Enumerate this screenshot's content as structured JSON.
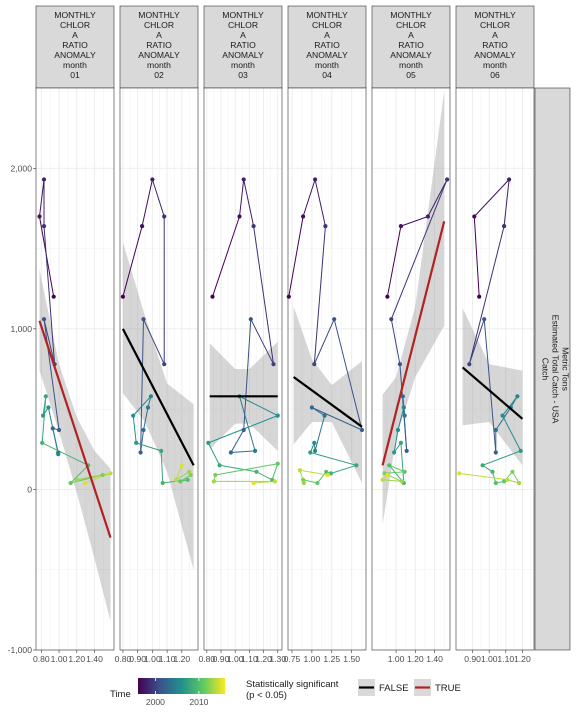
{
  "chart_data": {
    "type": "line",
    "facet_label_lines": [
      "MONTHLY",
      "CHLOR",
      "A",
      "RATIO",
      "ANOMALY",
      "month"
    ],
    "facet_months": [
      "01",
      "02",
      "03",
      "04",
      "05",
      "06"
    ],
    "y_strip_lines": [
      "Catch",
      "Estimated Total Catch - USA",
      "Metric Tons"
    ],
    "ylim": [
      -1000,
      2500
    ],
    "y_ticks": [
      -1000,
      0,
      1000,
      2000
    ],
    "y_tick_labels": [
      "-1,000",
      "0",
      "1,000",
      "2,000"
    ],
    "grid": true,
    "legend": {
      "position": "bottom",
      "color_title": "Time",
      "color_ticks": [
        "2000",
        "2010"
      ],
      "color_range": [
        1996,
        2016
      ],
      "color_stops": [
        "#440154",
        "#3b528b",
        "#21918c",
        "#5ec962",
        "#fde725"
      ],
      "sig_title_lines": [
        "Statistically significant",
        "(p < 0.05)"
      ],
      "sig_entries": [
        {
          "label": "FALSE",
          "color": "#000000"
        },
        {
          "label": "TRUE",
          "color": "#b22222"
        }
      ]
    },
    "facets": [
      {
        "month": "01",
        "xlim": [
          0.74,
          1.62
        ],
        "x_ticks": [
          0.8,
          1.0,
          1.2,
          1.4
        ],
        "x_tick_labels": [
          "0.80",
          "1.00",
          "1.20",
          "1.40"
        ],
        "points": [
          {
            "year": 1996,
            "x": 0.94,
            "y": 1200
          },
          {
            "year": 1997,
            "x": 0.78,
            "y": 1700
          },
          {
            "year": 1998,
            "x": 0.83,
            "y": 1930
          },
          {
            "year": 1999,
            "x": 0.83,
            "y": 1640
          },
          {
            "year": 2000,
            "x": 0.95,
            "y": 780
          },
          {
            "year": 2001,
            "x": 0.83,
            "y": 1060
          },
          {
            "year": 2002,
            "x": 1.0,
            "y": 370
          },
          {
            "year": 2003,
            "x": 0.93,
            "y": 380
          },
          {
            "year": 2004,
            "x": 0.99,
            "y": 230
          },
          {
            "year": 2005,
            "x": 0.99,
            "y": 220
          },
          {
            "year": 2006,
            "x": 0.88,
            "y": 510
          },
          {
            "year": 2007,
            "x": 0.82,
            "y": 460
          },
          {
            "year": 2008,
            "x": 0.85,
            "y": 580
          },
          {
            "year": 2009,
            "x": 0.81,
            "y": 290
          },
          {
            "year": 2010,
            "x": 1.33,
            "y": 150
          },
          {
            "year": 2011,
            "x": 1.13,
            "y": 40
          },
          {
            "year": 2012,
            "x": 1.49,
            "y": 90
          },
          {
            "year": 2013,
            "x": 1.2,
            "y": 60
          },
          {
            "year": 2014,
            "x": 1.58,
            "y": 100
          },
          {
            "year": 2015,
            "x": 1.29,
            "y": 40
          }
        ],
        "trend": {
          "x": [
            0.78,
            1.58
          ],
          "y": [
            1050,
            -300
          ],
          "significant": true
        },
        "ribbon": {
          "x": [
            0.78,
            1.0,
            1.2,
            1.4,
            1.58
          ],
          "lower": [
            740,
            360,
            -20,
            -430,
            -820
          ],
          "upper": [
            1370,
            780,
            450,
            240,
            130
          ]
        }
      },
      {
        "month": "02",
        "xlim": [
          0.78,
          1.31
        ],
        "x_ticks": [
          0.8,
          0.9,
          1.0,
          1.1,
          1.2
        ],
        "x_tick_labels": [
          "0.80",
          "0.90",
          "1.00",
          "1.10",
          "1.20"
        ],
        "points": [
          {
            "year": 1996,
            "x": 0.8,
            "y": 1200
          },
          {
            "year": 1997,
            "x": 0.93,
            "y": 1640
          },
          {
            "year": 1998,
            "x": 1.0,
            "y": 1930
          },
          {
            "year": 1999,
            "x": 1.08,
            "y": 1700
          },
          {
            "year": 2000,
            "x": 1.08,
            "y": 780
          },
          {
            "year": 2001,
            "x": 0.94,
            "y": 1060
          },
          {
            "year": 2002,
            "x": 0.92,
            "y": 230
          },
          {
            "year": 2003,
            "x": 0.94,
            "y": 370
          },
          {
            "year": 2004,
            "x": 0.97,
            "y": 510
          },
          {
            "year": 2005,
            "x": 0.99,
            "y": 580
          },
          {
            "year": 2006,
            "x": 0.87,
            "y": 460
          },
          {
            "year": 2007,
            "x": 0.89,
            "y": 290
          },
          {
            "year": 2008,
            "x": 1.06,
            "y": 240
          },
          {
            "year": 2009,
            "x": 1.07,
            "y": 40
          },
          {
            "year": 2010,
            "x": 1.24,
            "y": 60
          },
          {
            "year": 2011,
            "x": 1.19,
            "y": 50
          },
          {
            "year": 2012,
            "x": 1.26,
            "y": 90
          },
          {
            "year": 2013,
            "x": 1.25,
            "y": 110
          },
          {
            "year": 2014,
            "x": 1.16,
            "y": 60
          },
          {
            "year": 2015,
            "x": 1.2,
            "y": 150
          }
        ],
        "trend": {
          "x": [
            0.8,
            1.28
          ],
          "y": [
            1000,
            150
          ],
          "significant": false
        },
        "ribbon": {
          "x": [
            0.8,
            0.95,
            1.1,
            1.28
          ],
          "lower": [
            600,
            420,
            110,
            -500
          ],
          "upper": [
            1540,
            1080,
            660,
            530
          ]
        }
      },
      {
        "month": "03",
        "xlim": [
          0.78,
          1.33
        ],
        "x_ticks": [
          0.8,
          0.9,
          1.0,
          1.1,
          1.2,
          1.3
        ],
        "x_tick_labels": [
          "0.80",
          "0.90",
          "1.00",
          "1.10",
          "1.20",
          "1.30"
        ],
        "points": [
          {
            "year": 1996,
            "x": 0.84,
            "y": 1200
          },
          {
            "year": 1997,
            "x": 1.03,
            "y": 1700
          },
          {
            "year": 1998,
            "x": 1.06,
            "y": 1930
          },
          {
            "year": 1999,
            "x": 1.13,
            "y": 1640
          },
          {
            "year": 2000,
            "x": 1.27,
            "y": 780
          },
          {
            "year": 2001,
            "x": 1.11,
            "y": 1060
          },
          {
            "year": 2002,
            "x": 1.06,
            "y": 370
          },
          {
            "year": 2003,
            "x": 0.97,
            "y": 230
          },
          {
            "year": 2004,
            "x": 1.14,
            "y": 240
          },
          {
            "year": 2005,
            "x": 1.03,
            "y": 580
          },
          {
            "year": 2006,
            "x": 1.3,
            "y": 460
          },
          {
            "year": 2007,
            "x": 0.81,
            "y": 290
          },
          {
            "year": 2008,
            "x": 0.89,
            "y": 150
          },
          {
            "year": 2009,
            "x": 1.15,
            "y": 110
          },
          {
            "year": 2010,
            "x": 1.26,
            "y": 60
          },
          {
            "year": 2011,
            "x": 1.3,
            "y": 160
          },
          {
            "year": 2012,
            "x": 0.86,
            "y": 90
          },
          {
            "year": 2013,
            "x": 0.85,
            "y": 50
          },
          {
            "year": 2014,
            "x": 1.28,
            "y": 50
          },
          {
            "year": 2015,
            "x": 1.13,
            "y": 40
          }
        ],
        "trend": {
          "x": [
            0.82,
            1.3
          ],
          "y": [
            580,
            580
          ],
          "significant": false
        },
        "ribbon": {
          "x": [
            0.82,
            1.0,
            1.1,
            1.3
          ],
          "lower": [
            250,
            410,
            410,
            240
          ],
          "upper": [
            910,
            750,
            750,
            920
          ]
        }
      },
      {
        "month": "04",
        "xlim": [
          0.7,
          1.68
        ],
        "x_ticks": [
          0.75,
          1.0,
          1.25,
          1.5
        ],
        "x_tick_labels": [
          "0.75",
          "1.00",
          "1.25",
          "1.50"
        ],
        "points": [
          {
            "year": 1996,
            "x": 0.71,
            "y": 1200
          },
          {
            "year": 1997,
            "x": 0.89,
            "y": 1700
          },
          {
            "year": 1998,
            "x": 1.04,
            "y": 1930
          },
          {
            "year": 1999,
            "x": 1.17,
            "y": 1640
          },
          {
            "year": 2000,
            "x": 1.03,
            "y": 780
          },
          {
            "year": 2001,
            "x": 1.28,
            "y": 1060
          },
          {
            "year": 2002,
            "x": 1.63,
            "y": 370
          },
          {
            "year": 2003,
            "x": 1.0,
            "y": 510
          },
          {
            "year": 2004,
            "x": 1.16,
            "y": 460
          },
          {
            "year": 2005,
            "x": 1.04,
            "y": 240
          },
          {
            "year": 2006,
            "x": 1.03,
            "y": 290
          },
          {
            "year": 2007,
            "x": 0.98,
            "y": 230
          },
          {
            "year": 2008,
            "x": 1.56,
            "y": 150
          },
          {
            "year": 2009,
            "x": 1.24,
            "y": 100
          },
          {
            "year": 2010,
            "x": 1.18,
            "y": 110
          },
          {
            "year": 2011,
            "x": 1.07,
            "y": 40
          },
          {
            "year": 2012,
            "x": 0.89,
            "y": 60
          },
          {
            "year": 2013,
            "x": 0.9,
            "y": 40
          },
          {
            "year": 2014,
            "x": 0.85,
            "y": 120
          },
          {
            "year": 2015,
            "x": 1.2,
            "y": 90
          }
        ],
        "trend": {
          "x": [
            0.77,
            1.63
          ],
          "y": [
            700,
            390
          ],
          "significant": false
        },
        "ribbon": {
          "x": [
            0.77,
            1.0,
            1.25,
            1.63
          ],
          "lower": [
            280,
            420,
            420,
            40
          ],
          "upper": [
            1140,
            810,
            650,
            800
          ]
        }
      },
      {
        "month": "05",
        "xlim": [
          0.75,
          1.56
        ],
        "x_ticks": [
          1.0,
          1.2,
          1.4
        ],
        "x_tick_labels": [
          "1.00",
          "1.20",
          "1.40"
        ],
        "points": [
          {
            "year": 1996,
            "x": 0.91,
            "y": 1200
          },
          {
            "year": 1997,
            "x": 1.05,
            "y": 1640
          },
          {
            "year": 1998,
            "x": 1.33,
            "y": 1700
          },
          {
            "year": 1999,
            "x": 1.53,
            "y": 1930
          },
          {
            "year": 2000,
            "x": 0.95,
            "y": 1060
          },
          {
            "year": 2001,
            "x": 1.04,
            "y": 780
          },
          {
            "year": 2002,
            "x": 1.11,
            "y": 240
          },
          {
            "year": 2003,
            "x": 1.07,
            "y": 580
          },
          {
            "year": 2004,
            "x": 1.09,
            "y": 460
          },
          {
            "year": 2005,
            "x": 1.08,
            "y": 510
          },
          {
            "year": 2006,
            "x": 1.02,
            "y": 370
          },
          {
            "year": 2007,
            "x": 0.98,
            "y": 230
          },
          {
            "year": 2008,
            "x": 1.05,
            "y": 290
          },
          {
            "year": 2009,
            "x": 1.08,
            "y": 40
          },
          {
            "year": 2010,
            "x": 0.93,
            "y": 150
          },
          {
            "year": 2011,
            "x": 1.09,
            "y": 110
          },
          {
            "year": 2012,
            "x": 0.88,
            "y": 100
          },
          {
            "year": 2013,
            "x": 1.06,
            "y": 50
          },
          {
            "year": 2014,
            "x": 0.86,
            "y": 60
          },
          {
            "year": 2015,
            "x": 0.91,
            "y": 90
          }
        ],
        "trend": {
          "x": [
            0.86,
            1.5
          ],
          "y": [
            150,
            1670
          ],
          "significant": true
        },
        "ribbon": {
          "x": [
            0.86,
            1.0,
            1.2,
            1.5
          ],
          "lower": [
            -220,
            320,
            700,
            1020
          ],
          "upper": [
            590,
            700,
            1140,
            2480
          ]
        }
      },
      {
        "month": "06",
        "xlim": [
          0.8,
          1.27
        ],
        "x_ticks": [
          0.9,
          1.0,
          1.1,
          1.2
        ],
        "x_tick_labels": [
          "0.90",
          "1.00",
          "1.10",
          "1.20"
        ],
        "points": [
          {
            "year": 1996,
            "x": 0.94,
            "y": 1200
          },
          {
            "year": 1997,
            "x": 0.91,
            "y": 1700
          },
          {
            "year": 1998,
            "x": 1.12,
            "y": 1930
          },
          {
            "year": 1999,
            "x": 1.09,
            "y": 1640
          },
          {
            "year": 2000,
            "x": 0.88,
            "y": 780
          },
          {
            "year": 2001,
            "x": 0.97,
            "y": 1060
          },
          {
            "year": 2002,
            "x": 1.04,
            "y": 230
          },
          {
            "year": 2003,
            "x": 1.04,
            "y": 370
          },
          {
            "year": 2004,
            "x": 1.13,
            "y": 510
          },
          {
            "year": 2005,
            "x": 1.17,
            "y": 580
          },
          {
            "year": 2006,
            "x": 1.08,
            "y": 460
          },
          {
            "year": 2007,
            "x": 1.19,
            "y": 240
          },
          {
            "year": 2008,
            "x": 0.96,
            "y": 150
          },
          {
            "year": 2009,
            "x": 1.02,
            "y": 110
          },
          {
            "year": 2010,
            "x": 1.04,
            "y": 40
          },
          {
            "year": 2011,
            "x": 1.09,
            "y": 50
          },
          {
            "year": 2012,
            "x": 1.14,
            "y": 110
          },
          {
            "year": 2013,
            "x": 1.18,
            "y": 40
          },
          {
            "year": 2014,
            "x": 1.11,
            "y": 60
          },
          {
            "year": 2015,
            "x": 0.82,
            "y": 100
          }
        ],
        "trend": {
          "x": [
            0.84,
            1.2
          ],
          "y": [
            760,
            440
          ],
          "significant": false
        },
        "ribbon": {
          "x": [
            0.84,
            1.0,
            1.2
          ],
          "lower": [
            400,
            420,
            150
          ],
          "upper": [
            1130,
            780,
            740
          ]
        }
      }
    ]
  }
}
